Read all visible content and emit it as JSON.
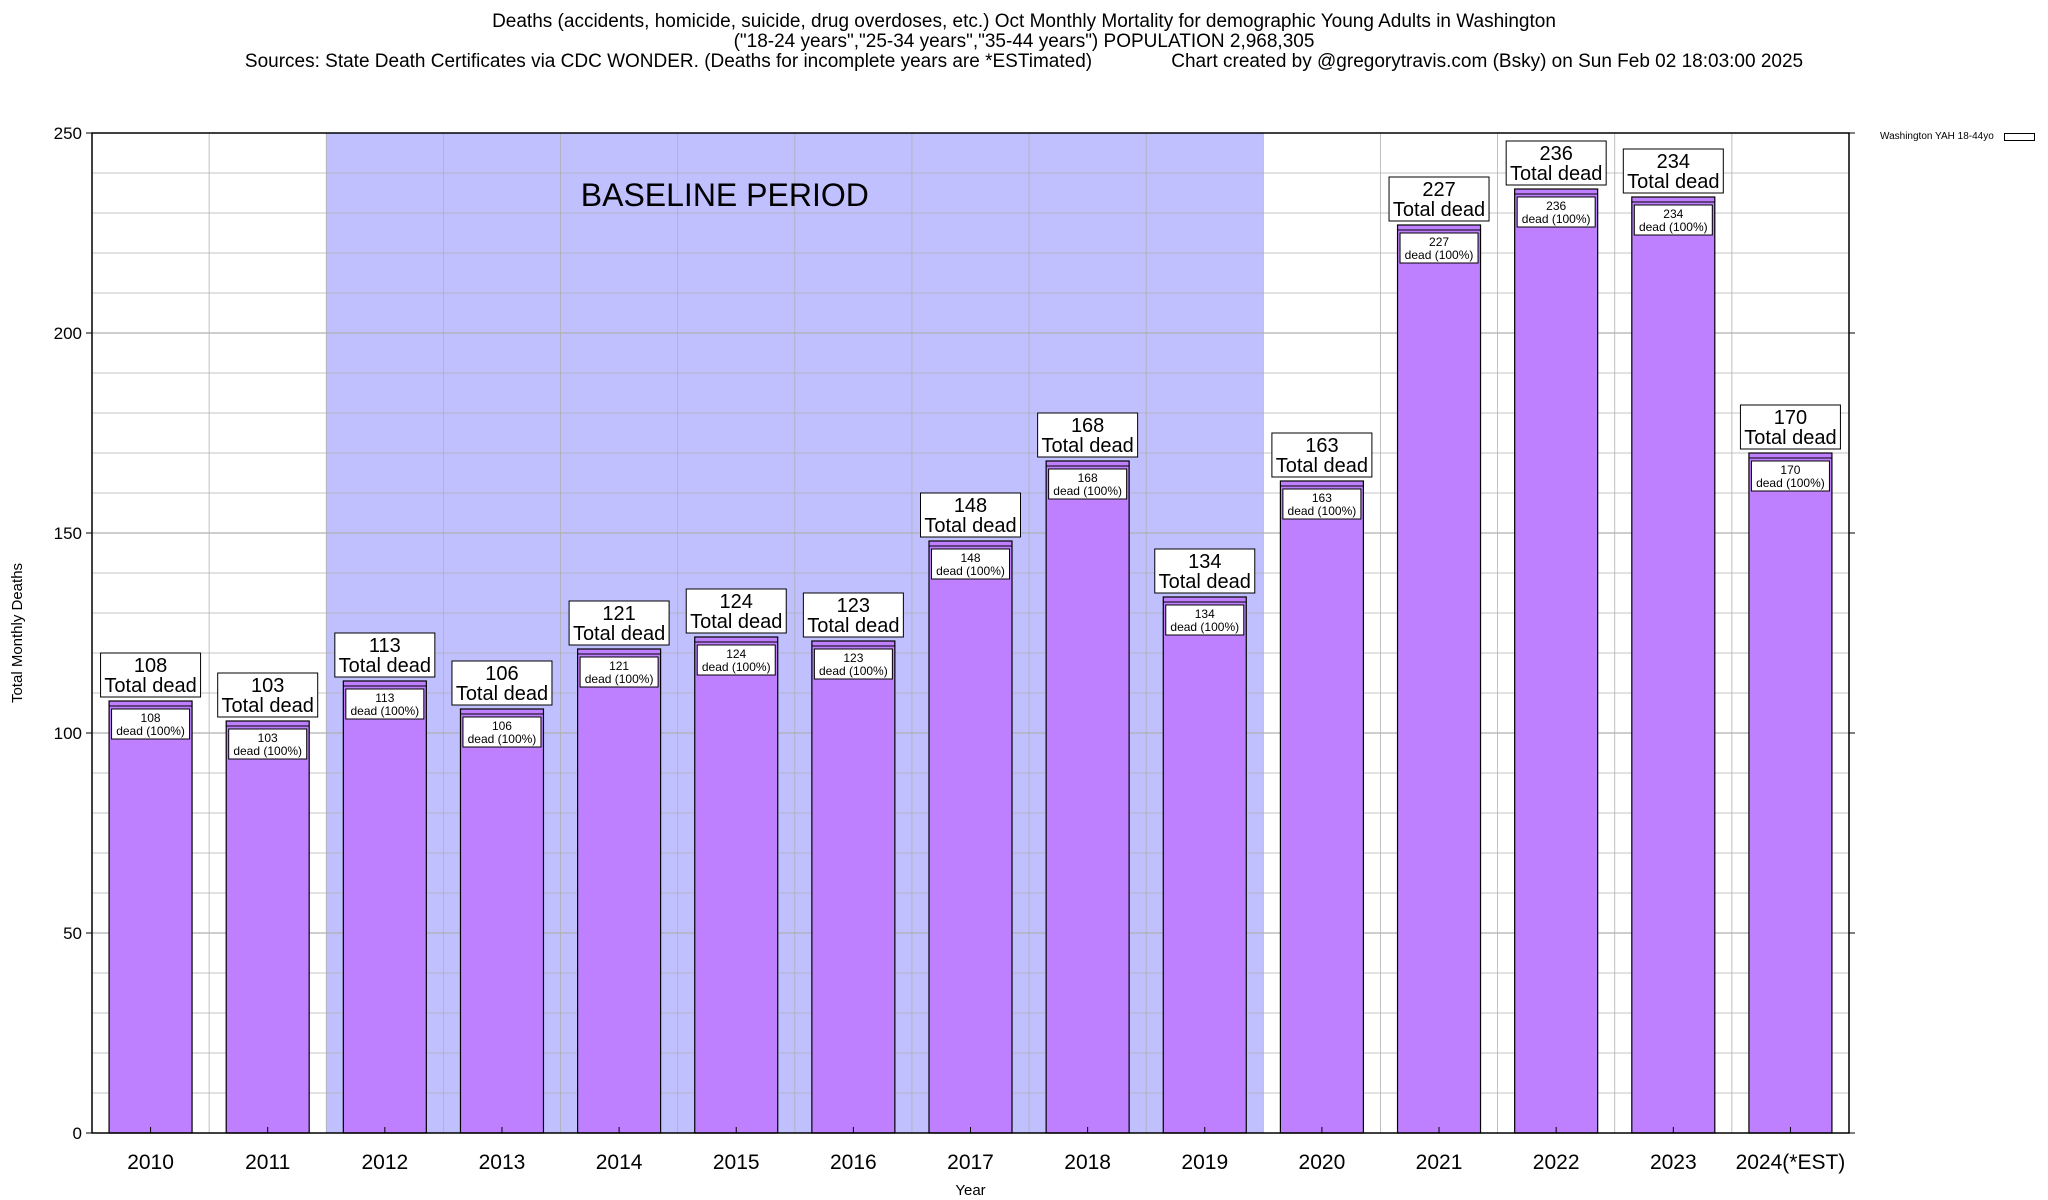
{
  "title": {
    "line1": "Deaths (accidents, homicide, suicide, drug overdoses, etc.) Oct Monthly Mortality for demographic Young Adults in Washington",
    "line2": "(\"18-24 years\",\"25-34 years\",\"35-44 years\") POPULATION 2,968,305",
    "line3": "Sources: State Death Certificates via CDC WONDER. (Deaths for incomplete years are *ESTimated)               Chart created by @gregorytravis.com (Bsky) on Sun Feb 02 18:03:00 2025"
  },
  "legend": {
    "label": "Washington YAH 18-44yo"
  },
  "colors": {
    "bar": "#bf80ff",
    "baseline_band": "#c0c0ff",
    "grid": "#b0b0b0"
  },
  "chart_data": {
    "type": "bar",
    "title": "Deaths (accidents, homicide, suicide, drug overdoses, etc.) Oct Monthly Mortality for demographic Young Adults in Washington",
    "xlabel": "Year",
    "ylabel": "Total Monthly Deaths",
    "ylim": [
      0,
      250
    ],
    "yticks": [
      0,
      50,
      100,
      150,
      200,
      250
    ],
    "grid": true,
    "legend_position": "top-right",
    "categories": [
      "2010",
      "2011",
      "2012",
      "2013",
      "2014",
      "2015",
      "2016",
      "2017",
      "2018",
      "2019",
      "2020",
      "2021",
      "2022",
      "2023",
      "2024(*EST)"
    ],
    "series": [
      {
        "name": "Washington YAH 18-44yo",
        "values": [
          108,
          103,
          113,
          106,
          121,
          124,
          123,
          148,
          168,
          134,
          163,
          227,
          236,
          234,
          170
        ]
      }
    ],
    "total_label_suffix": "Total dead",
    "inner_label_suffix": "dead (100%)",
    "annotations": [
      {
        "text": "BASELINE PERIOD",
        "from": "2012",
        "to": "2019"
      }
    ]
  }
}
